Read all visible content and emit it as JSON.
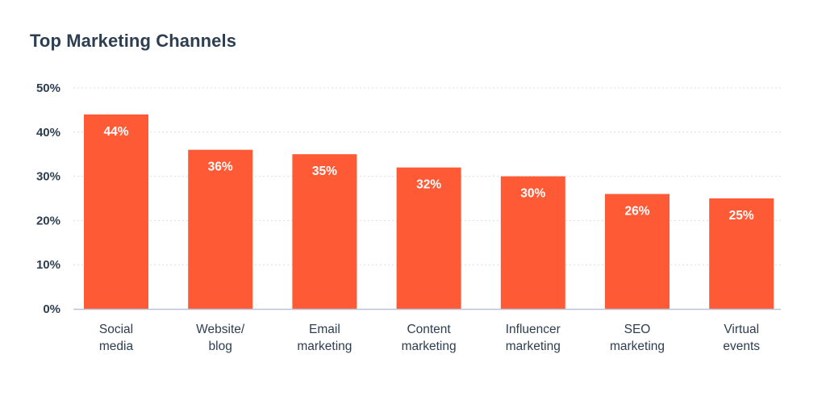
{
  "chart_data": {
    "type": "bar",
    "title": "Top Marketing Channels",
    "xlabel": "",
    "ylabel": "",
    "categories": [
      [
        "Social",
        "media"
      ],
      [
        "Website/",
        "blog"
      ],
      [
        "Email",
        "marketing"
      ],
      [
        "Content",
        "marketing"
      ],
      [
        "Influencer",
        "marketing"
      ],
      [
        "SEO",
        "marketing"
      ],
      [
        "Virtual",
        "events"
      ]
    ],
    "values": [
      44,
      36,
      35,
      32,
      30,
      26,
      25
    ],
    "value_labels": [
      "44%",
      "36%",
      "35%",
      "32%",
      "30%",
      "26%",
      "25%"
    ],
    "ylim": [
      0,
      50
    ],
    "yticks": [
      0,
      10,
      20,
      30,
      40,
      50
    ],
    "ytick_labels": [
      "0%",
      "10%",
      "20%",
      "30%",
      "40%",
      "50%"
    ],
    "grid": true,
    "legend": "none",
    "colors": {
      "bar": "#ff5a36",
      "grid": "#d9dde3",
      "axis": "#b8c3d6",
      "text": "#2d3e50"
    }
  }
}
